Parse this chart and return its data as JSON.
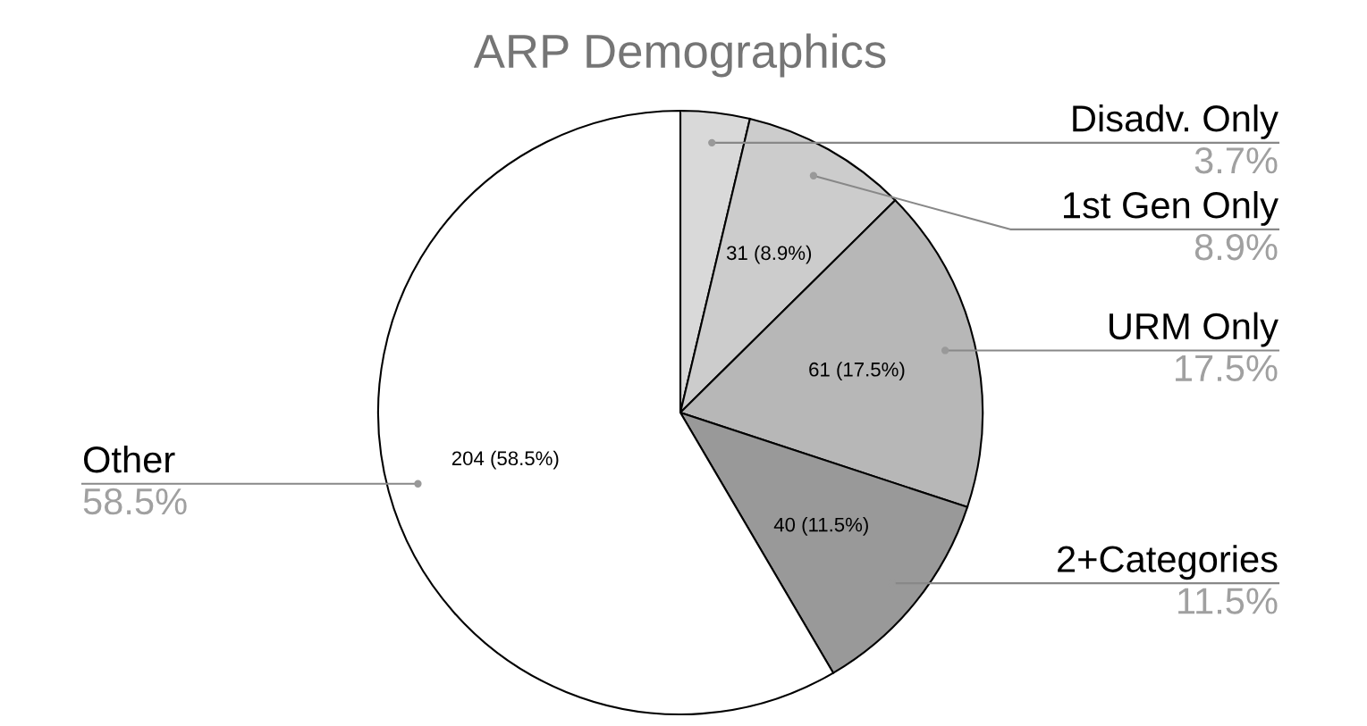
{
  "chart_data": {
    "type": "pie",
    "title": "ARP Demographics",
    "categories": [
      "Disadv. Only",
      "1st Gen Only",
      "URM Only",
      "2+Categories",
      "Other"
    ],
    "values": [
      3.7,
      8.9,
      17.5,
      11.5,
      58.5
    ],
    "colors": [
      "#d9d9d9",
      "#cccccc",
      "#b7b7b7",
      "#999999",
      "#ffffff"
    ],
    "value_labels": [
      null,
      "31 (8.9%)",
      "61 (17.5%)",
      "40 (11.5%)",
      "204 (58.5%)"
    ],
    "annotations": [
      "3.7%",
      "8.9%",
      "17.5%",
      "11.5%",
      "58.5%"
    ],
    "legend": false
  }
}
